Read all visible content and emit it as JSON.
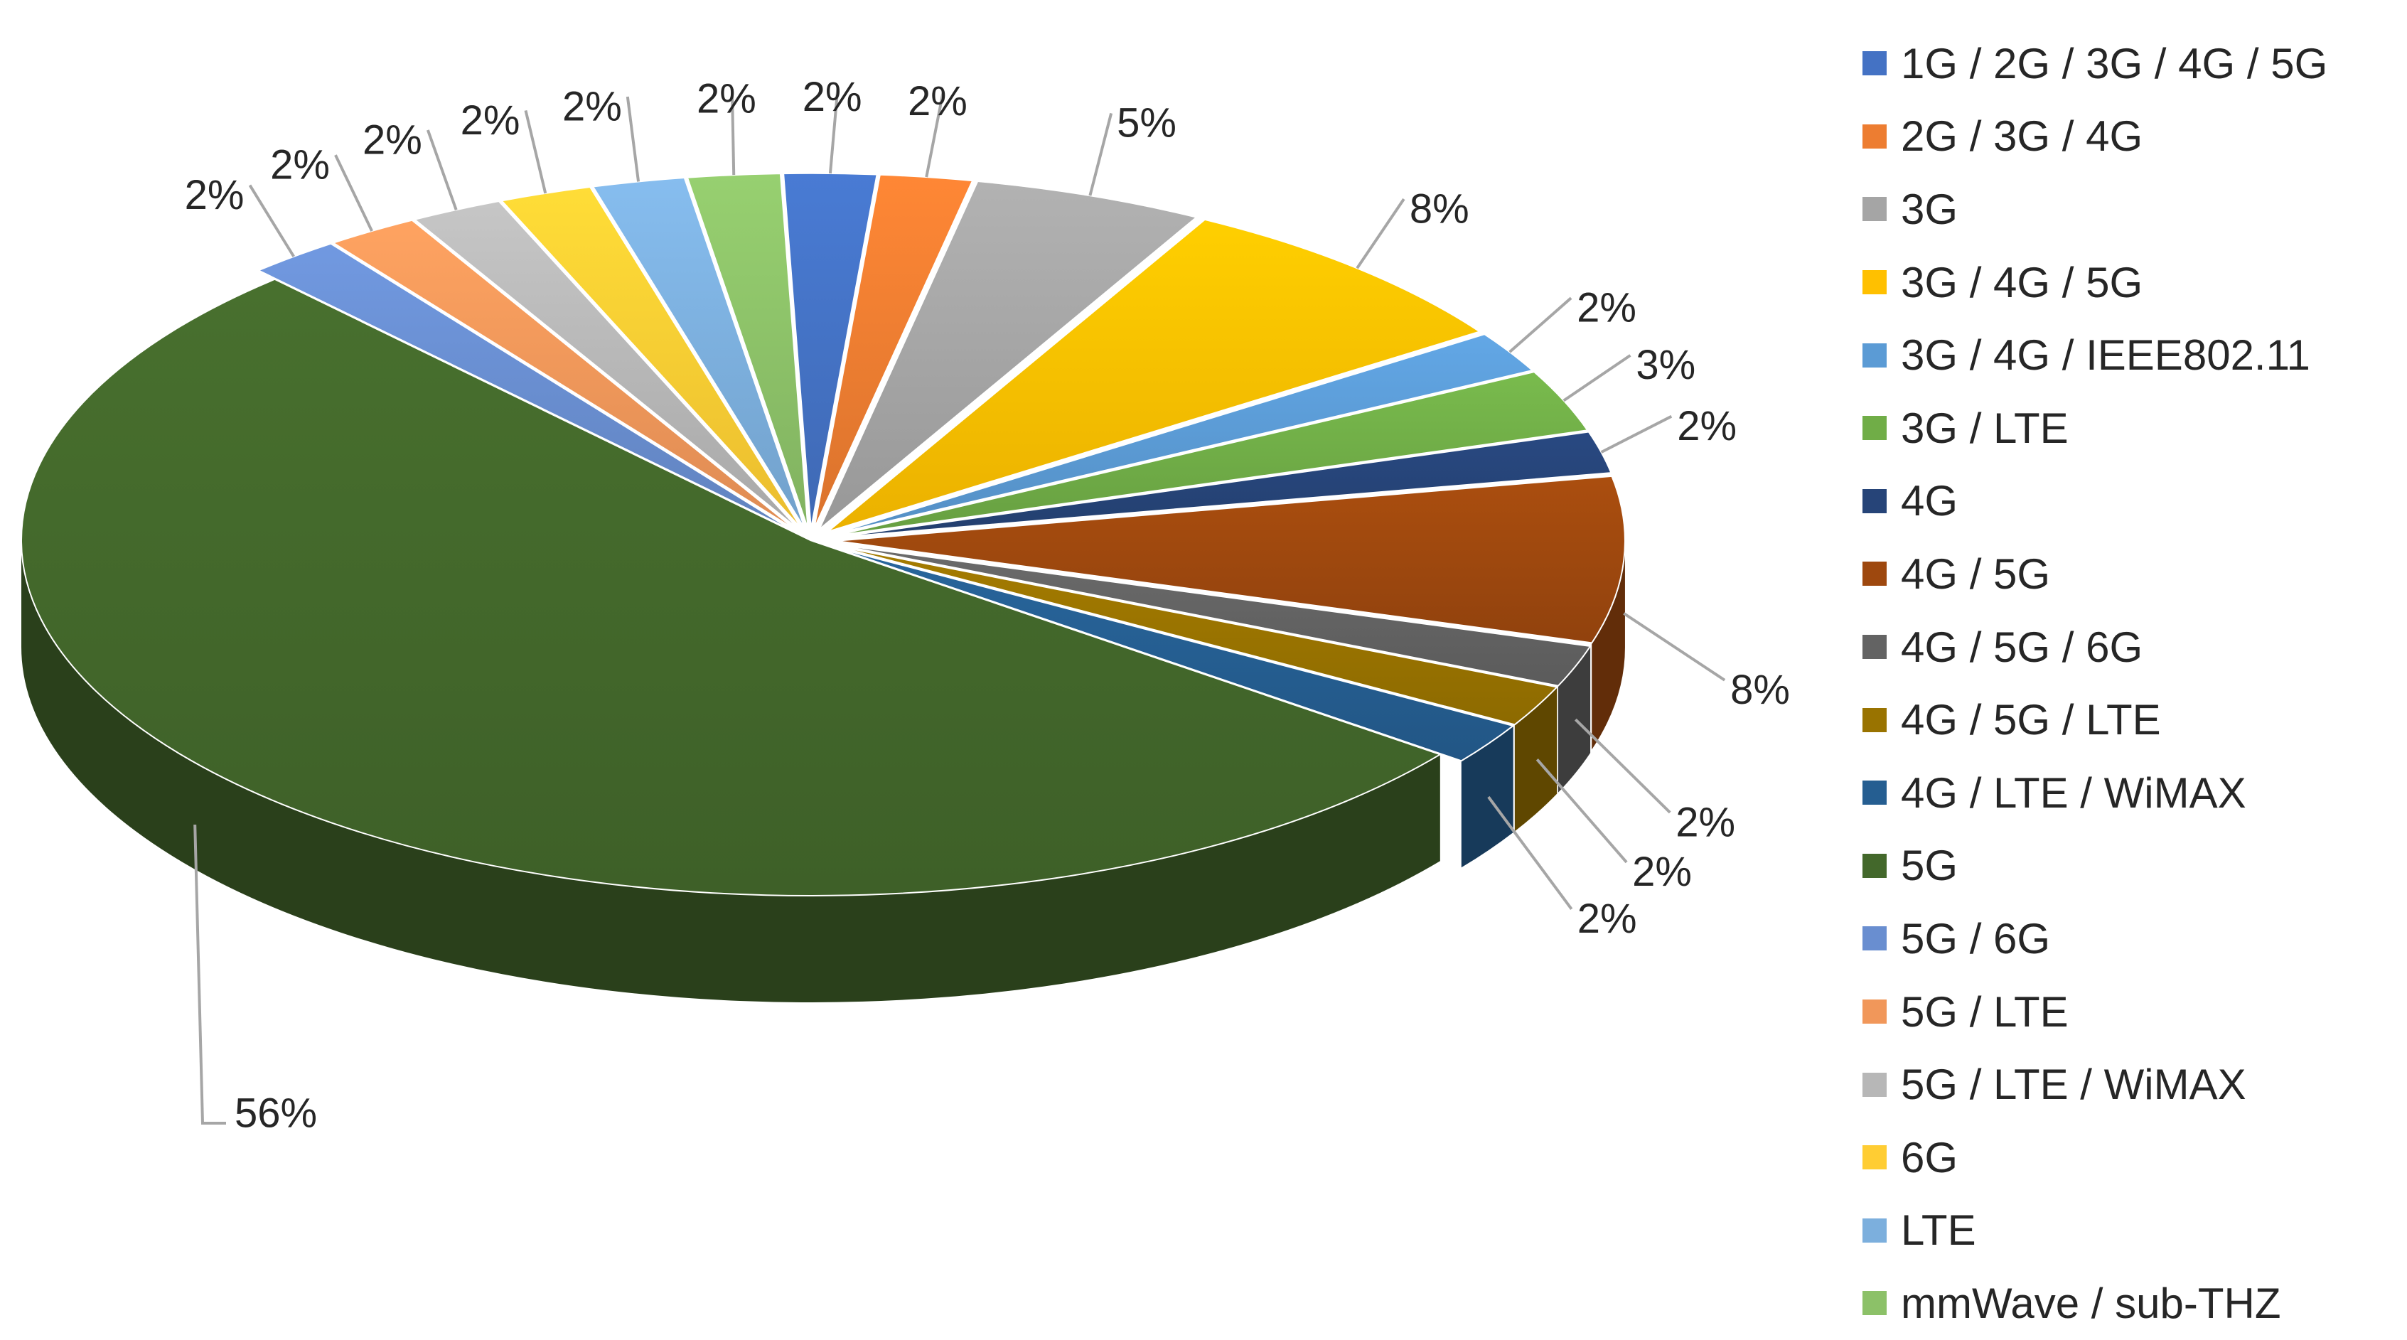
{
  "chart_data": {
    "type": "pie",
    "style": "3d-exploded",
    "legend_position": "right",
    "series": [
      {
        "categories": [
          "1G / 2G / 3G / 4G / 5G",
          "2G / 3G / 4G",
          "3G",
          "3G / 4G / 5G",
          "3G / 4G / IEEE802.11",
          "3G / LTE",
          "4G",
          "4G / 5G",
          "4G / 5G / 6G",
          "4G / 5G / LTE",
          "4G / LTE / WiMAX",
          "5G",
          "5G / 6G",
          "5G / LTE",
          "5G / LTE / WiMAX",
          "6G",
          "LTE",
          "mmWave / sub-THZ"
        ],
        "values": [
          2,
          2,
          5,
          8,
          2,
          3,
          2,
          8,
          2,
          2,
          2,
          56,
          2,
          2,
          2,
          2,
          2,
          2
        ],
        "labels": [
          "2%",
          "2%",
          "5%",
          "8%",
          "2%",
          "3%",
          "2%",
          "8%",
          "2%",
          "2%",
          "2%",
          "56%",
          "2%",
          "2%",
          "2%",
          "2%",
          "2%",
          "2%"
        ],
        "colors": [
          "#4472C4",
          "#ED7D31",
          "#A5A5A5",
          "#FFC000",
          "#5B9BD5",
          "#70AD47",
          "#264478",
          "#9E480E",
          "#636363",
          "#997300",
          "#255E91",
          "#43682B",
          "#698ED0",
          "#F1975A",
          "#B7B7B7",
          "#FFCD33",
          "#7CAFDD",
          "#8CC168"
        ]
      }
    ]
  }
}
